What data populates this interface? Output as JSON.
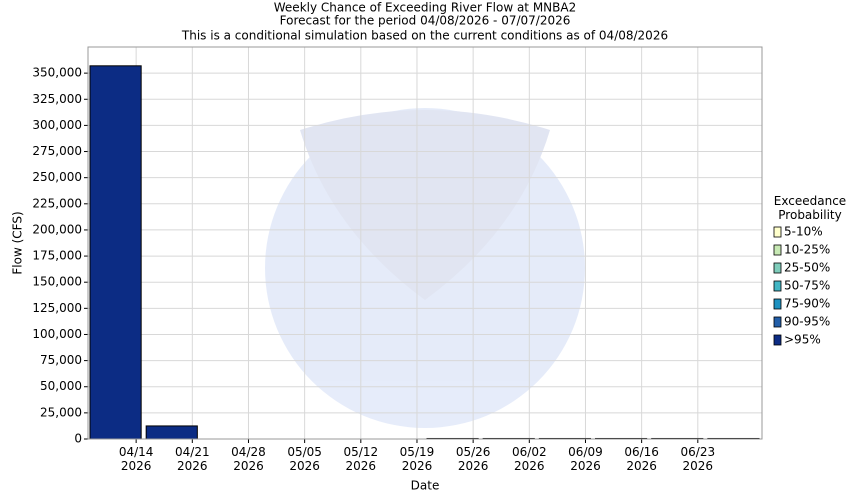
{
  "chart_data": {
    "type": "stacked-bar",
    "title": "Weekly Chance of Exceeding River Flow at MNBA2",
    "subtitle": [
      "Forecast for the period 04/08/2026 - 07/07/2026",
      "This is a conditional simulation based on the current conditions as of 04/08/2026"
    ],
    "x_label": "Date",
    "y_label": "Flow (CFS)",
    "legend_title": "Exceedance\nProbability",
    "legend_position": "right",
    "grid": true,
    "x": [
      "2026-04-08",
      "2026-04-15",
      "2026-04-22",
      "2026-04-29",
      "2026-05-06",
      "2026-05-13",
      "2026-05-20",
      "2026-05-27",
      "2026-06-03",
      "2026-06-10",
      "2026-06-17",
      "2026-06-24"
    ],
    "xlim": [
      "2026-04-08",
      "2026-07-01"
    ],
    "xticks": [
      {
        "value": "2026-04-14",
        "label": "04/14\n2026"
      },
      {
        "value": "2026-04-21",
        "label": "04/21\n2026"
      },
      {
        "value": "2026-04-28",
        "label": "04/28\n2026"
      },
      {
        "value": "2026-05-05",
        "label": "05/05\n2026"
      },
      {
        "value": "2026-05-12",
        "label": "05/12\n2026"
      },
      {
        "value": "2026-05-19",
        "label": "05/19\n2026"
      },
      {
        "value": "2026-05-26",
        "label": "05/26\n2026"
      },
      {
        "value": "2026-06-02",
        "label": "06/02\n2026"
      },
      {
        "value": "2026-06-09",
        "label": "06/09\n2026"
      },
      {
        "value": "2026-06-16",
        "label": "06/16\n2026"
      },
      {
        "value": "2026-06-23",
        "label": "06/23\n2026"
      }
    ],
    "ylim": [
      0,
      375000
    ],
    "yticks": [
      0,
      {
        "value": 25000,
        "label": "25,000"
      },
      {
        "value": 50000,
        "label": "50,000"
      },
      {
        "value": 75000,
        "label": "75,000"
      },
      {
        "value": 100000,
        "label": "100,000"
      },
      {
        "value": 125000,
        "label": "125,000"
      },
      {
        "value": 150000,
        "label": "150,000"
      },
      {
        "value": 175000,
        "label": "175,000"
      },
      {
        "value": 200000,
        "label": "200,000"
      },
      {
        "value": 225000,
        "label": "225,000"
      },
      {
        "value": 250000,
        "label": "250,000"
      },
      {
        "value": 275000,
        "label": "275,000"
      },
      {
        "value": 300000,
        "label": "300,000"
      },
      {
        "value": 325000,
        "label": "325,000"
      },
      {
        "value": 350000,
        "label": "350,000"
      }
    ],
    "series": [
      {
        "name": "5-10%",
        "color": "#ffffcc",
        "values": [
          0,
          0,
          0,
          0,
          0,
          0,
          0,
          0,
          0,
          0,
          0,
          0
        ]
      },
      {
        "name": "10-25%",
        "color": "#c7e9b4",
        "values": [
          0,
          0,
          0,
          0,
          0,
          0,
          0,
          0,
          0,
          0,
          0,
          0
        ]
      },
      {
        "name": "25-50%",
        "color": "#7fcdbb",
        "values": [
          0,
          0,
          0,
          0,
          0,
          0,
          0,
          0,
          0,
          0,
          0,
          0
        ]
      },
      {
        "name": "50-75%",
        "color": "#41b6c4",
        "values": [
          0,
          0,
          0,
          0,
          0,
          0,
          0,
          0,
          0,
          0,
          0,
          0
        ]
      },
      {
        "name": "75-90%",
        "color": "#1d91c0",
        "values": [
          0,
          0,
          0,
          0,
          0,
          0,
          0,
          0,
          0,
          0,
          0,
          0
        ]
      },
      {
        "name": "90-95%",
        "color": "#225ea8",
        "values": [
          0,
          0,
          0,
          0,
          0,
          0,
          0,
          0,
          0,
          0,
          0,
          0
        ]
      },
      {
        "name": ">95%",
        "color": "#0c2c84",
        "values": [
          357000,
          12500,
          0,
          0,
          0,
          0,
          500,
          500,
          500,
          500,
          500,
          500
        ]
      }
    ]
  }
}
